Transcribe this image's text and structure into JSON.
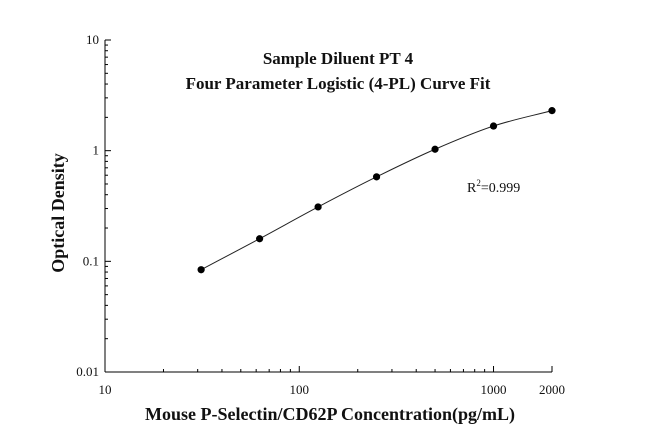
{
  "chart_data": {
    "type": "scatter",
    "title": [
      "Sample Diluent PT 4",
      "Four Parameter Logistic (4-PL) Curve Fit"
    ],
    "xlabel": "Mouse P-Selectin/CD62P Concentration(pg/mL)",
    "ylabel": "Optical Density",
    "xscale": "log",
    "yscale": "log",
    "xlim": [
      10,
      2000
    ],
    "ylim": [
      0.01,
      10
    ],
    "x_ticks": [
      {
        "value": 10,
        "label": "10"
      },
      {
        "value": 100,
        "label": "100"
      },
      {
        "value": 1000,
        "label": "1000"
      },
      {
        "value": 2000,
        "label": "2000"
      }
    ],
    "y_ticks": [
      {
        "value": 0.01,
        "label": "0.01"
      },
      {
        "value": 0.1,
        "label": "0.1"
      },
      {
        "value": 1,
        "label": "1"
      },
      {
        "value": 10,
        "label": "10"
      }
    ],
    "grid": false,
    "series": [
      {
        "x": [
          31.25,
          62.5,
          125,
          250,
          500,
          1000,
          2000
        ],
        "y": [
          0.084,
          0.16,
          0.31,
          0.58,
          1.03,
          1.67,
          2.3
        ]
      }
    ],
    "fit_curve": "4-PL",
    "annotation": {
      "base": "R",
      "sup": "2",
      "text": "=0.999"
    },
    "colors": {
      "points": "#000000",
      "curve": "#222222",
      "axes": "#000000"
    }
  }
}
